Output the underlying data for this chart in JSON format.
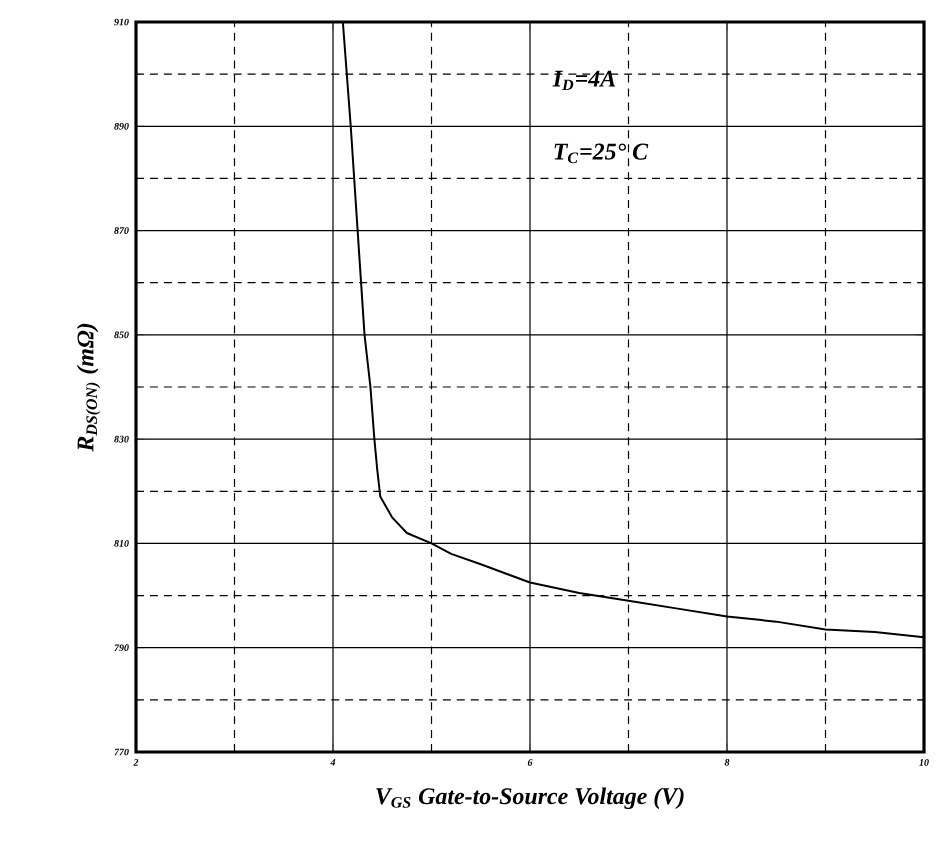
{
  "chart_data": {
    "type": "line",
    "xlabel": "V$_{GS}$ Gate-to-Source Voltage (V)",
    "ylabel": "R$_{DS(ON)}$ (mΩ)",
    "annotations": [
      "I$_{D}$=4A",
      "T$_{C}$=25° C"
    ],
    "xlim": [
      2,
      10
    ],
    "ylim": [
      770,
      910
    ],
    "xticks": [
      2,
      4,
      6,
      8,
      10
    ],
    "yticks": [
      770,
      790,
      810,
      830,
      850,
      870,
      890,
      910
    ],
    "grid": true,
    "marker": "none",
    "line_style": "solid",
    "series": [
      {
        "color": "#000000",
        "x": [
          4.1,
          4.18,
          4.25,
          4.32,
          4.38,
          4.42,
          4.45,
          4.48,
          4.6,
          4.75,
          5.0,
          5.2,
          5.5,
          6.0,
          6.5,
          7.0,
          7.5,
          8.0,
          8.5,
          9.0,
          9.5,
          10.0
        ],
        "values": [
          910,
          890,
          870,
          850,
          840,
          830,
          824,
          819,
          815,
          812,
          810,
          808,
          806,
          802.5,
          800.5,
          799,
          797.5,
          796,
          795,
          793.5,
          793,
          792
        ]
      }
    ]
  }
}
